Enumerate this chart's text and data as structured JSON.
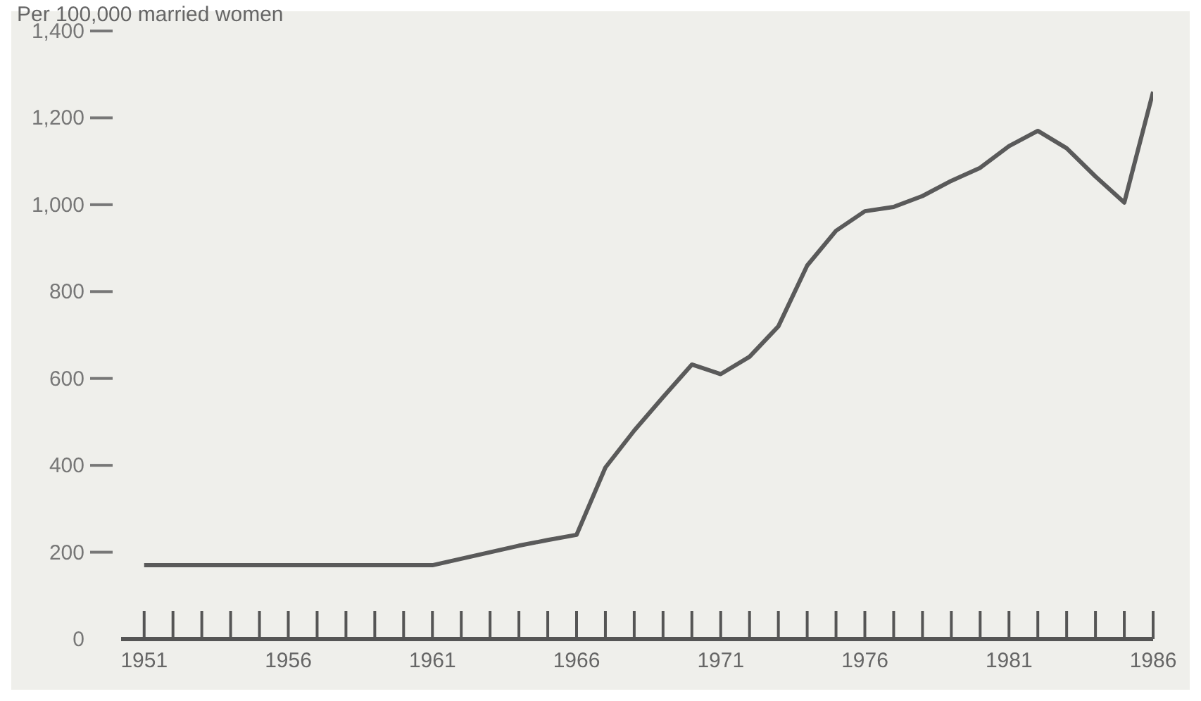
{
  "chart_data": {
    "type": "line",
    "ylabel": "Per 100,000 married women",
    "x": [
      1951,
      1952,
      1953,
      1954,
      1955,
      1956,
      1957,
      1958,
      1959,
      1960,
      1961,
      1962,
      1963,
      1964,
      1965,
      1966,
      1967,
      1968,
      1969,
      1970,
      1971,
      1972,
      1973,
      1974,
      1975,
      1976,
      1977,
      1978,
      1979,
      1980,
      1981,
      1982,
      1983,
      1984,
      1985,
      1986
    ],
    "series": [
      {
        "color": "#5a5a5a",
        "values": [
          170,
          170,
          170,
          170,
          170,
          170,
          170,
          170,
          170,
          170,
          170,
          185,
          200,
          215,
          228,
          240,
          395,
          480,
          557,
          632,
          610,
          650,
          720,
          860,
          940,
          985,
          995,
          1020,
          1055,
          1085,
          1135,
          1170,
          1130,
          1065,
          1005,
          1260
        ]
      }
    ],
    "xlim": [
      1950.2,
      1986
    ],
    "xticks": [
      1951,
      1956,
      1961,
      1966,
      1971,
      1976,
      1981,
      1986
    ],
    "ylim": [
      0,
      1400
    ],
    "yticks": [
      0,
      200,
      400,
      600,
      800,
      {
        "value": 1000,
        "label": "1,000"
      },
      {
        "value": 1200,
        "label": "1,200"
      },
      {
        "value": 1400,
        "label": "1,400"
      }
    ],
    "grid": false,
    "legend": false,
    "marker": "none",
    "line_style": "solid"
  }
}
